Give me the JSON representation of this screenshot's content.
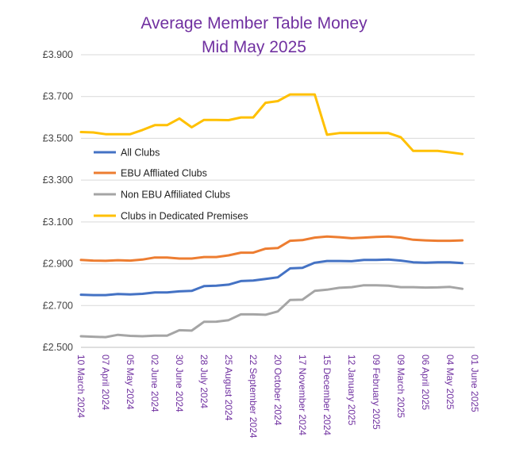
{
  "chart_data": {
    "type": "line",
    "title": "Average Member Table Money",
    "subtitle": "Mid May 2025",
    "ylim": [
      2.5,
      3.9
    ],
    "yticks": [
      "£2.500",
      "£2.700",
      "£2.900",
      "£3.100",
      "£3.300",
      "£3.500",
      "£3.700",
      "£3.900"
    ],
    "ytick_values": [
      2.5,
      2.7,
      2.9,
      3.1,
      3.3,
      3.5,
      3.7,
      3.9
    ],
    "grid": true,
    "legend_position": "left-middle",
    "x_labels": [
      "10 March 2024",
      "07 April 2024",
      "05 May 2024",
      "02 June 2024",
      "30 June 2024",
      "28 July 2024",
      "25 August 2024",
      "22 September 2024",
      "20 October 2024",
      "17 November 2024",
      "15 December 2024",
      "12 January 2025",
      "09 February 2025",
      "09 March 2025",
      "06 April 2025",
      "04 May 2025",
      "01 June 2025"
    ],
    "x": [
      "10 March 2024",
      "17 March 2024",
      "24 March 2024",
      "31 March 2024",
      "07 April 2024",
      "14 April 2024",
      "21 April 2024",
      "28 April 2024",
      "05 May 2024",
      "12 May 2024",
      "19 May 2024",
      "26 May 2024",
      "02 June 2024",
      "09 June 2024",
      "16 June 2024",
      "23 June 2024",
      "30 June 2024",
      "07 July 2024",
      "14 July 2024",
      "21 July 2024",
      "28 July 2024",
      "04 August 2024",
      "11 August 2024",
      "18 August 2024",
      "25 August 2024",
      "01 September 2024",
      "08 September 2024",
      "15 September 2024",
      "22 September 2024",
      "29 September 2024",
      "06 October 2024",
      "13 October 2024",
      "20 October 2024",
      "27 October 2024",
      "03 November 2024",
      "10 November 2024",
      "17 November 2024",
      "24 November 2024",
      "01 December 2024",
      "08 December 2024",
      "15 December 2024",
      "22 December 2024",
      "29 December 2024",
      "05 January 2025",
      "12 January 2025",
      "19 January 2025",
      "26 January 2025",
      "02 February 2025",
      "09 February 2025",
      "16 February 2025",
      "23 February 2025",
      "02 March 2025",
      "09 March 2025",
      "16 March 2025",
      "23 March 2025",
      "30 March 2025",
      "06 April 2025",
      "13 April 2025",
      "20 April 2025",
      "27 April 2025",
      "04 May 2025",
      "11 May 2025",
      "18 May 2025",
      "25 May 2025",
      "01 June 2025"
    ],
    "series": [
      {
        "name": "All Clubs",
        "color": "#4472c4",
        "points": [
          [
            "10 March 2024",
            2.752
          ],
          [
            "24 March 2024",
            2.75
          ],
          [
            "07 April 2024",
            2.75
          ],
          [
            "21 April 2024",
            2.755
          ],
          [
            "05 May 2024",
            2.753
          ],
          [
            "19 May 2024",
            2.756
          ],
          [
            "02 June 2024",
            2.763
          ],
          [
            "16 June 2024",
            2.763
          ],
          [
            "30 June 2024",
            2.768
          ],
          [
            "14 July 2024",
            2.77
          ],
          [
            "28 July 2024",
            2.793
          ],
          [
            "11 August 2024",
            2.795
          ],
          [
            "25 August 2024",
            2.8
          ],
          [
            "08 September 2024",
            2.817
          ],
          [
            "22 September 2024",
            2.82
          ],
          [
            "06 October 2024",
            2.827
          ],
          [
            "20 October 2024",
            2.835
          ],
          [
            "03 November 2024",
            2.878
          ],
          [
            "17 November 2024",
            2.88
          ],
          [
            "01 December 2024",
            2.905
          ],
          [
            "15 December 2024",
            2.913
          ],
          [
            "29 December 2024",
            2.913
          ],
          [
            "12 January 2025",
            2.912
          ],
          [
            "26 January 2025",
            2.918
          ],
          [
            "09 February 2025",
            2.918
          ],
          [
            "23 February 2025",
            2.92
          ],
          [
            "09 March 2025",
            2.915
          ],
          [
            "23 March 2025",
            2.907
          ],
          [
            "06 April 2025",
            2.905
          ],
          [
            "20 April 2025",
            2.907
          ],
          [
            "04 May 2025",
            2.907
          ],
          [
            "18 May 2025",
            2.903
          ]
        ]
      },
      {
        "name": "EBU Affliated Clubs",
        "color": "#ed7d31",
        "points": [
          [
            "10 March 2024",
            2.918
          ],
          [
            "24 March 2024",
            2.915
          ],
          [
            "07 April 2024",
            2.914
          ],
          [
            "21 April 2024",
            2.917
          ],
          [
            "05 May 2024",
            2.915
          ],
          [
            "19 May 2024",
            2.92
          ],
          [
            "02 June 2024",
            2.93
          ],
          [
            "16 June 2024",
            2.93
          ],
          [
            "30 June 2024",
            2.925
          ],
          [
            "14 July 2024",
            2.925
          ],
          [
            "28 July 2024",
            2.932
          ],
          [
            "11 August 2024",
            2.932
          ],
          [
            "25 August 2024",
            2.94
          ],
          [
            "08 September 2024",
            2.953
          ],
          [
            "22 September 2024",
            2.953
          ],
          [
            "06 October 2024",
            2.972
          ],
          [
            "20 October 2024",
            2.975
          ],
          [
            "03 November 2024",
            3.01
          ],
          [
            "17 November 2024",
            3.013
          ],
          [
            "01 December 2024",
            3.025
          ],
          [
            "15 December 2024",
            3.03
          ],
          [
            "29 December 2024",
            3.027
          ],
          [
            "12 January 2025",
            3.022
          ],
          [
            "26 January 2025",
            3.025
          ],
          [
            "09 February 2025",
            3.028
          ],
          [
            "23 February 2025",
            3.03
          ],
          [
            "09 March 2025",
            3.025
          ],
          [
            "23 March 2025",
            3.015
          ],
          [
            "06 April 2025",
            3.012
          ],
          [
            "20 April 2025",
            3.01
          ],
          [
            "04 May 2025",
            3.01
          ],
          [
            "18 May 2025",
            3.012
          ]
        ]
      },
      {
        "name": "Non EBU Affiliated Clubs",
        "color": "#a5a5a5",
        "points": [
          [
            "10 March 2024",
            2.553
          ],
          [
            "24 March 2024",
            2.551
          ],
          [
            "07 April 2024",
            2.549
          ],
          [
            "21 April 2024",
            2.56
          ],
          [
            "05 May 2024",
            2.555
          ],
          [
            "19 May 2024",
            2.553
          ],
          [
            "02 June 2024",
            2.556
          ],
          [
            "16 June 2024",
            2.556
          ],
          [
            "30 June 2024",
            2.582
          ],
          [
            "14 July 2024",
            2.58
          ],
          [
            "28 July 2024",
            2.622
          ],
          [
            "11 August 2024",
            2.623
          ],
          [
            "25 August 2024",
            2.63
          ],
          [
            "08 September 2024",
            2.658
          ],
          [
            "22 September 2024",
            2.658
          ],
          [
            "06 October 2024",
            2.656
          ],
          [
            "20 October 2024",
            2.672
          ],
          [
            "03 November 2024",
            2.727
          ],
          [
            "17 November 2024",
            2.728
          ],
          [
            "01 December 2024",
            2.77
          ],
          [
            "15 December 2024",
            2.776
          ],
          [
            "29 December 2024",
            2.785
          ],
          [
            "12 January 2025",
            2.788
          ],
          [
            "26 January 2025",
            2.797
          ],
          [
            "09 February 2025",
            2.797
          ],
          [
            "23 February 2025",
            2.795
          ],
          [
            "09 March 2025",
            2.788
          ],
          [
            "23 March 2025",
            2.788
          ],
          [
            "06 April 2025",
            2.786
          ],
          [
            "20 April 2025",
            2.787
          ],
          [
            "04 May 2025",
            2.789
          ],
          [
            "18 May 2025",
            2.78
          ]
        ]
      },
      {
        "name": "Clubs in Dedicated Premises",
        "color": "#ffc000",
        "points": [
          [
            "10 March 2024",
            3.53
          ],
          [
            "24 March 2024",
            3.528
          ],
          [
            "07 April 2024",
            3.52
          ],
          [
            "21 April 2024",
            3.52
          ],
          [
            "05 May 2024",
            3.52
          ],
          [
            "19 May 2024",
            3.54
          ],
          [
            "02 June 2024",
            3.563
          ],
          [
            "16 June 2024",
            3.563
          ],
          [
            "30 June 2024",
            3.595
          ],
          [
            "14 July 2024",
            3.553
          ],
          [
            "28 July 2024",
            3.588
          ],
          [
            "11 August 2024",
            3.588
          ],
          [
            "25 August 2024",
            3.587
          ],
          [
            "08 September 2024",
            3.6
          ],
          [
            "22 September 2024",
            3.6
          ],
          [
            "06 October 2024",
            3.67
          ],
          [
            "20 October 2024",
            3.678
          ],
          [
            "03 November 2024",
            3.71
          ],
          [
            "17 November 2024",
            3.71
          ],
          [
            "01 December 2024",
            3.71
          ],
          [
            "15 December 2024",
            3.517
          ],
          [
            "29 December 2024",
            3.525
          ],
          [
            "12 January 2025",
            3.525
          ],
          [
            "26 January 2025",
            3.525
          ],
          [
            "09 February 2025",
            3.525
          ],
          [
            "23 February 2025",
            3.525
          ],
          [
            "09 March 2025",
            3.505
          ],
          [
            "23 March 2025",
            3.44
          ],
          [
            "06 April 2025",
            3.44
          ],
          [
            "20 April 2025",
            3.44
          ],
          [
            "04 May 2025",
            3.433
          ],
          [
            "18 May 2025",
            3.425
          ]
        ]
      }
    ]
  }
}
